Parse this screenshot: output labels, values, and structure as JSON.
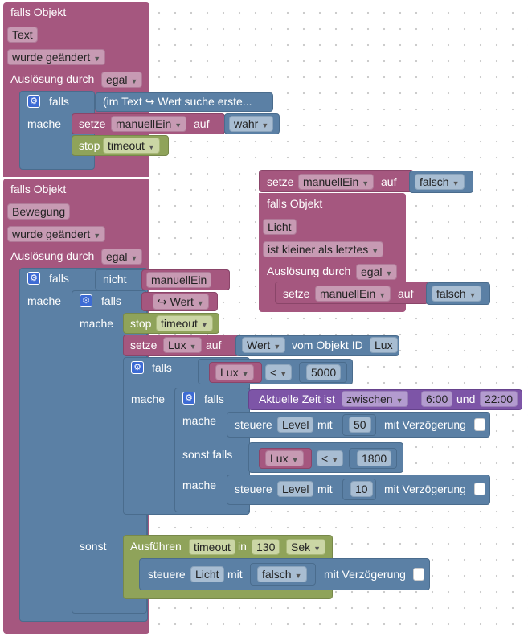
{
  "colors": {
    "event": "#a5577f",
    "logic": "#5b80a5",
    "timer": "#8fa35a",
    "time": "#7d55a7"
  },
  "icons": {
    "mutator": "gear-icon",
    "dropdown": "dropdown-arrow-icon"
  },
  "kw": {
    "falls_objekt": "falls Objekt",
    "wurde_geaendert": "wurde geändert",
    "ausloesung_durch": "Auslösung durch",
    "egal": "egal",
    "falls": "falls",
    "mache": "mache",
    "sonst": "sonst",
    "sonst_falls": "sonst falls",
    "setze": "setze",
    "auf": "auf",
    "stop": "stop",
    "nicht": "nicht",
    "vom_objekt_id": "vom Objekt ID",
    "steuere": "steuere",
    "mit": "mit",
    "mit_verzoegerung": "mit Verzögerung",
    "ausfuehren": "Ausführen",
    "in": "in",
    "sek": "Sek",
    "und": "und",
    "aktuelle_zeit_ist": "Aktuelle Zeit ist",
    "zwischen": "zwischen",
    "ist_kleiner": "ist kleiner als letztes",
    "lt": "<",
    "arrow_wert": "↪ Wert",
    "wert": "Wert",
    "wahr": "wahr",
    "falsch": "falsch"
  },
  "vars": {
    "manuellEin": "manuellEin",
    "timeout": "timeout",
    "lux": "Lux",
    "level": "Level",
    "licht": "Licht"
  },
  "block1": {
    "object": "Text",
    "condition": "(im Text ↪ Wert suche erste..."
  },
  "block2": {
    "object": "Bewegung",
    "value_5000": "5000",
    "time_from": "6:00",
    "time_to": "22:00",
    "level_50": "50",
    "value_1800": "1800",
    "level_10": "10",
    "timeout_130": "130",
    "lux_id": "Lux"
  },
  "block3": {
    "object": "Licht"
  }
}
